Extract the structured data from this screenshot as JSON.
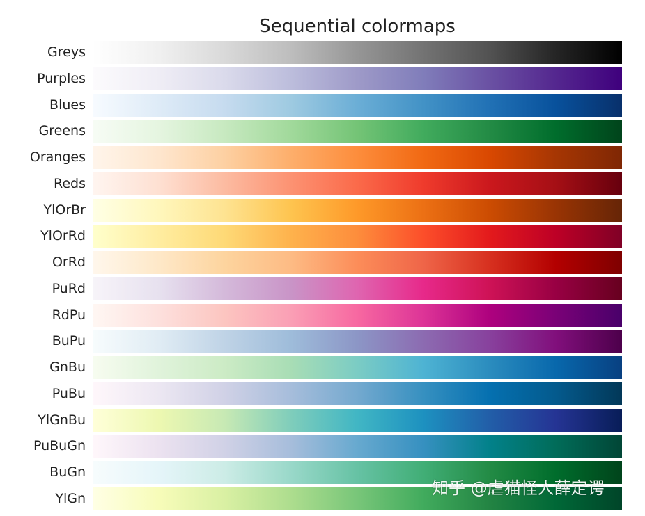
{
  "chart_data": {
    "type": "table",
    "title": "Sequential colormaps",
    "colormaps": [
      {
        "name": "Greys",
        "colors": [
          "#ffffff",
          "#f0f0f0",
          "#d9d9d9",
          "#bdbdbd",
          "#969696",
          "#737373",
          "#525252",
          "#252525",
          "#000000"
        ]
      },
      {
        "name": "Purples",
        "colors": [
          "#fcfbfd",
          "#efedf5",
          "#dadaeb",
          "#bcbddc",
          "#9e9ac8",
          "#807dba",
          "#6a51a3",
          "#54278f",
          "#3f007d"
        ]
      },
      {
        "name": "Blues",
        "colors": [
          "#f7fbff",
          "#deebf7",
          "#c6dbef",
          "#9ecae1",
          "#6baed6",
          "#4292c6",
          "#2171b5",
          "#08519c",
          "#08306b"
        ]
      },
      {
        "name": "Greens",
        "colors": [
          "#f7fcf5",
          "#e5f5e0",
          "#c7e9c0",
          "#a1d99b",
          "#74c476",
          "#41ab5d",
          "#238b45",
          "#006d2c",
          "#00441b"
        ]
      },
      {
        "name": "Oranges",
        "colors": [
          "#fff5eb",
          "#fee6ce",
          "#fdd0a2",
          "#fdae6b",
          "#fd8d3c",
          "#f16913",
          "#d94801",
          "#a63603",
          "#7f2704"
        ]
      },
      {
        "name": "Reds",
        "colors": [
          "#fff5f0",
          "#fee0d2",
          "#fcbba1",
          "#fc9272",
          "#fb6a4a",
          "#ef3b2c",
          "#cb181d",
          "#a50f15",
          "#67000d"
        ]
      },
      {
        "name": "YlOrBr",
        "colors": [
          "#ffffe5",
          "#fff7bc",
          "#fee391",
          "#fec44f",
          "#fe9929",
          "#ec7014",
          "#cc4c02",
          "#993404",
          "#662506"
        ]
      },
      {
        "name": "YlOrRd",
        "colors": [
          "#ffffcc",
          "#ffeda0",
          "#fed976",
          "#feb24c",
          "#fd8d3c",
          "#fc4e2a",
          "#e31a1c",
          "#bd0026",
          "#800026"
        ]
      },
      {
        "name": "OrRd",
        "colors": [
          "#fff7ec",
          "#fee8c8",
          "#fdd49e",
          "#fdbb84",
          "#fc8d59",
          "#ef6548",
          "#d7301f",
          "#b30000",
          "#7f0000"
        ]
      },
      {
        "name": "PuRd",
        "colors": [
          "#f7f4f9",
          "#e7e1ef",
          "#d4b9da",
          "#c994c7",
          "#df65b0",
          "#e7298a",
          "#ce1256",
          "#980043",
          "#67001f"
        ]
      },
      {
        "name": "RdPu",
        "colors": [
          "#fff7f3",
          "#fde0dd",
          "#fcc5c0",
          "#fa9fb5",
          "#f768a1",
          "#dd3497",
          "#ae017e",
          "#7a0177",
          "#49006a"
        ]
      },
      {
        "name": "BuPu",
        "colors": [
          "#f7fcfd",
          "#e0ecf4",
          "#bfd3e6",
          "#9ebcda",
          "#8c96c6",
          "#8c6bb1",
          "#88419d",
          "#810f7c",
          "#4d004b"
        ]
      },
      {
        "name": "GnBu",
        "colors": [
          "#f7fcf0",
          "#e0f3db",
          "#ccebc5",
          "#a8ddb5",
          "#7bccc4",
          "#4eb3d3",
          "#2b8cbe",
          "#0868ac",
          "#084081"
        ]
      },
      {
        "name": "PuBu",
        "colors": [
          "#fff7fb",
          "#ece7f2",
          "#d0d1e6",
          "#a6bddb",
          "#74a9cf",
          "#3690c0",
          "#0570b0",
          "#045a8d",
          "#023858"
        ]
      },
      {
        "name": "YlGnBu",
        "colors": [
          "#ffffd9",
          "#edf8b1",
          "#c7e9b4",
          "#7fcdbb",
          "#41b6c4",
          "#1d91c0",
          "#225ea8",
          "#253494",
          "#081d58"
        ]
      },
      {
        "name": "PuBuGn",
        "colors": [
          "#fff7fb",
          "#ece2f0",
          "#d0d1e6",
          "#a6bddb",
          "#67a9cf",
          "#3690c0",
          "#02818a",
          "#016c59",
          "#014636"
        ]
      },
      {
        "name": "BuGn",
        "colors": [
          "#f7fcfd",
          "#e5f5f9",
          "#ccece6",
          "#99d8c9",
          "#66c2a4",
          "#41ae76",
          "#238b45",
          "#006d2c",
          "#00441b"
        ]
      },
      {
        "name": "YlGn",
        "colors": [
          "#ffffe5",
          "#f7fcb9",
          "#d9f0a3",
          "#addd8e",
          "#78c679",
          "#41ab5d",
          "#238443",
          "#006837",
          "#004529"
        ]
      }
    ]
  },
  "watermark": "知乎 @虐猫怪人薛定谔"
}
